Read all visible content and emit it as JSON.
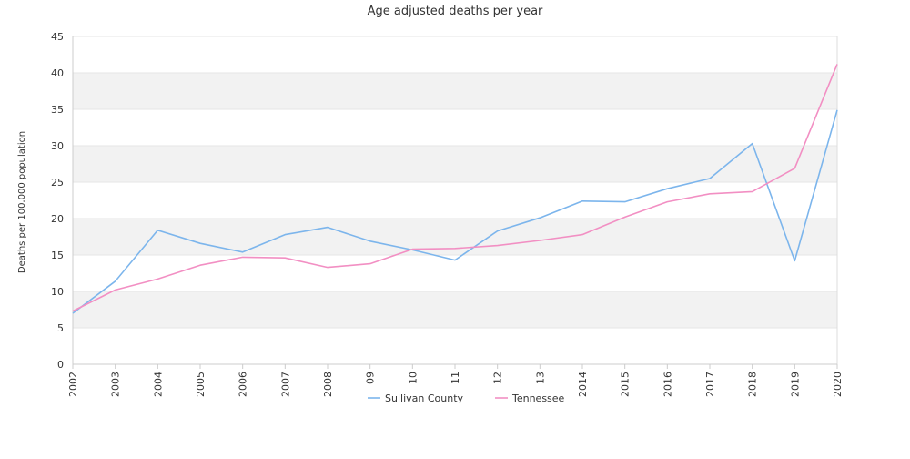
{
  "chart_data": {
    "type": "line",
    "title": "Age adjusted deaths per year",
    "ylabel": "Deaths per 100,000 population",
    "xlabel": "",
    "x": [
      "2002",
      "2003",
      "2004",
      "2005",
      "2006",
      "2007",
      "2008",
      "09",
      "10",
      "11",
      "12",
      "13",
      "2014",
      "2015",
      "2016",
      "2017",
      "2018",
      "2019",
      "2020"
    ],
    "ylim": [
      0,
      45
    ],
    "yticks": [
      0,
      5,
      10,
      15,
      20,
      25,
      30,
      35,
      40,
      45
    ],
    "grid": "alternating horizontal bands",
    "legend": "bottom-center",
    "series": [
      {
        "name": "Sullivan County",
        "color": "#7cb5ec",
        "values": [
          7.0,
          11.4,
          18.4,
          16.6,
          15.4,
          17.8,
          18.8,
          16.9,
          15.7,
          14.3,
          18.3,
          20.1,
          22.4,
          22.3,
          24.1,
          25.5,
          30.3,
          14.2,
          34.9
        ]
      },
      {
        "name": "Tennessee",
        "color": "#f28fc3",
        "values": [
          7.3,
          10.2,
          11.7,
          13.6,
          14.7,
          14.6,
          13.3,
          13.8,
          15.8,
          15.9,
          16.3,
          17.0,
          17.8,
          20.2,
          22.3,
          23.4,
          23.7,
          26.9,
          41.2
        ]
      }
    ]
  }
}
